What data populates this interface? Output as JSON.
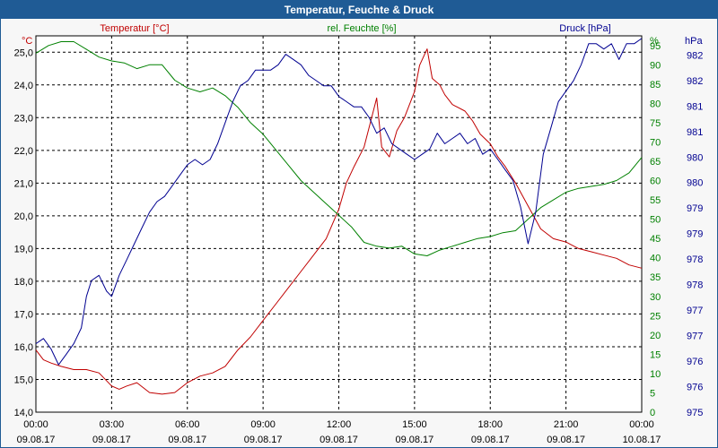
{
  "window": {
    "title": "Temperatur, Feuchte & Druck"
  },
  "colors": {
    "temperature": "#c00000",
    "humidity": "#008000",
    "pressure": "#000090",
    "titlebar": "#1f5b95"
  },
  "chart_data": {
    "type": "line",
    "title": "Temperatur, Feuchte & Druck",
    "xlabel": "",
    "x_ticks": [
      {
        "time": "00:00",
        "date": "09.08.17"
      },
      {
        "time": "03:00",
        "date": "09.08.17"
      },
      {
        "time": "06:00",
        "date": "09.08.17"
      },
      {
        "time": "09:00",
        "date": "09.08.17"
      },
      {
        "time": "12:00",
        "date": "09.08.17"
      },
      {
        "time": "15:00",
        "date": "09.08.17"
      },
      {
        "time": "18:00",
        "date": "09.08.17"
      },
      {
        "time": "21:00",
        "date": "09.08.17"
      },
      {
        "time": "00:00",
        "date": "10.08.17"
      }
    ],
    "xlim": [
      0,
      24
    ],
    "grid": true,
    "axes": {
      "temperature": {
        "label": "Temperatur [°C]",
        "unit": "°C",
        "ylim": [
          14,
          25.5
        ],
        "ticks": [
          "14,0",
          "15,0",
          "16,0",
          "17,0",
          "18,0",
          "19,0",
          "20,0",
          "21,0",
          "22,0",
          "23,0",
          "24,0",
          "25,0"
        ]
      },
      "humidity": {
        "label": "rel. Feuchte [%]",
        "unit": "%",
        "ylim": [
          0,
          97.5
        ],
        "ticks": [
          "0",
          "5",
          "10",
          "15",
          "20",
          "25",
          "30",
          "35",
          "40",
          "45",
          "50",
          "55",
          "60",
          "65",
          "70",
          "75",
          "80",
          "85",
          "90",
          "95"
        ]
      },
      "pressure": {
        "label": "Druck [hPa]",
        "unit": "hPa",
        "ylim": [
          975,
          982.15
        ],
        "ticks": [
          "975",
          "976",
          "976",
          "977",
          "977",
          "978",
          "978",
          "979",
          "979",
          "980",
          "980",
          "981",
          "981",
          "982",
          "982"
        ]
      }
    },
    "series": [
      {
        "name": "Temperatur [°C]",
        "axis": "temperature",
        "x": [
          0,
          0.3,
          0.6,
          1,
          1.5,
          2,
          2.5,
          3,
          3.3,
          3.6,
          4,
          4.5,
          5,
          5.5,
          6,
          6.5,
          7,
          7.5,
          8,
          8.5,
          9,
          9.5,
          10,
          10.5,
          11,
          11.5,
          12,
          12.3,
          12.6,
          13,
          13.3,
          13.5,
          13.7,
          14,
          14.3,
          14.6,
          15,
          15.2,
          15.5,
          15.7,
          16,
          16.2,
          16.5,
          17,
          17.3,
          17.6,
          18,
          18.3,
          18.6,
          19,
          19.5,
          20,
          20.5,
          21,
          21.5,
          22,
          22.5,
          23,
          23.5,
          24
        ],
        "values": [
          15.9,
          15.6,
          15.5,
          15.4,
          15.3,
          15.3,
          15.2,
          14.8,
          14.7,
          14.8,
          14.9,
          14.6,
          14.55,
          14.6,
          14.9,
          15.1,
          15.2,
          15.4,
          15.9,
          16.3,
          16.8,
          17.3,
          17.8,
          18.3,
          18.8,
          19.3,
          20.2,
          21.0,
          21.5,
          22.1,
          23.0,
          23.6,
          22.1,
          21.8,
          22.6,
          23.0,
          23.8,
          24.6,
          25.1,
          24.2,
          24.0,
          23.7,
          23.4,
          23.2,
          22.9,
          22.5,
          22.2,
          21.8,
          21.5,
          21.0,
          20.3,
          19.6,
          19.3,
          19.2,
          19.0,
          18.9,
          18.8,
          18.7,
          18.5,
          18.4
        ]
      },
      {
        "name": "rel. Feuchte [%]",
        "axis": "humidity",
        "x": [
          0,
          0.5,
          1,
          1.5,
          2,
          2.5,
          3,
          3.5,
          4,
          4.5,
          5,
          5.5,
          6,
          6.5,
          7,
          7.5,
          8,
          8.5,
          9,
          9.5,
          10,
          10.5,
          11,
          11.5,
          12,
          12.5,
          13,
          13.5,
          14,
          14.5,
          15,
          15.5,
          16,
          16.5,
          17,
          17.5,
          18,
          18.5,
          19,
          19.5,
          20,
          20.5,
          21,
          21.5,
          22,
          22.5,
          23,
          23.5,
          24
        ],
        "values": [
          93,
          95,
          96,
          96,
          94,
          92,
          91,
          90.5,
          89,
          90,
          90,
          86,
          84,
          83,
          84,
          82,
          79,
          75,
          72,
          68,
          64,
          60,
          57,
          54,
          51,
          48,
          44,
          43,
          42.5,
          43,
          41,
          40.5,
          42,
          43,
          44,
          45,
          45.5,
          46.5,
          47,
          50,
          53,
          55,
          57,
          58,
          58.5,
          59,
          60,
          62,
          66
        ]
      },
      {
        "name": "Druck [hPa]",
        "axis": "pressure",
        "x": [
          0,
          0.3,
          0.6,
          0.9,
          1.2,
          1.5,
          1.8,
          2,
          2.2,
          2.5,
          2.8,
          3,
          3.3,
          3.6,
          3.9,
          4.2,
          4.5,
          4.8,
          5.1,
          5.4,
          5.7,
          6,
          6.3,
          6.6,
          6.9,
          7.2,
          7.5,
          7.8,
          8.1,
          8.4,
          8.7,
          9,
          9.3,
          9.6,
          9.9,
          10.2,
          10.5,
          10.8,
          11.1,
          11.4,
          11.7,
          12,
          12.3,
          12.6,
          12.9,
          13.2,
          13.5,
          13.8,
          14.1,
          14.4,
          14.7,
          15,
          15.3,
          15.6,
          15.9,
          16.2,
          16.5,
          16.8,
          17.1,
          17.4,
          17.7,
          18,
          18.3,
          18.6,
          18.9,
          19.2,
          19.5,
          19.8,
          20.1,
          20.4,
          20.7,
          21,
          21.3,
          21.6,
          21.9,
          22.2,
          22.5,
          22.8,
          23.1,
          23.4,
          23.7,
          24
        ],
        "values": [
          976.3,
          976.4,
          976.2,
          975.9,
          976.1,
          976.3,
          976.6,
          977.2,
          977.5,
          977.6,
          977.3,
          977.2,
          977.6,
          977.9,
          978.2,
          978.5,
          978.8,
          979.0,
          979.1,
          979.3,
          979.5,
          979.7,
          979.8,
          979.7,
          979.8,
          980.1,
          980.5,
          980.9,
          981.2,
          981.3,
          981.5,
          981.5,
          981.5,
          981.6,
          981.8,
          981.7,
          981.6,
          981.4,
          981.3,
          981.2,
          981.2,
          981.0,
          980.9,
          980.8,
          980.8,
          980.6,
          980.3,
          980.4,
          980.1,
          980.0,
          979.9,
          979.8,
          979.9,
          980.0,
          980.3,
          980.1,
          980.2,
          980.3,
          980.1,
          980.2,
          979.9,
          980.0,
          979.8,
          979.6,
          979.4,
          978.9,
          978.2,
          978.8,
          979.9,
          980.4,
          980.9,
          981.1,
          981.3,
          981.6,
          982.0,
          982.0,
          981.9,
          982.0,
          981.7,
          982.0,
          982.0,
          982.1
        ]
      }
    ]
  }
}
